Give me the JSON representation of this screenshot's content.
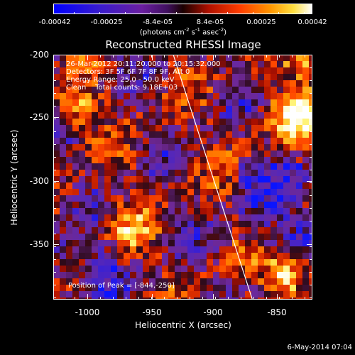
{
  "colorbar": {
    "tick_labels": [
      "-0.00042",
      "-0.00025",
      "-8.4e-05",
      "8.4e-05",
      "0.00025",
      "0.00042"
    ],
    "unit_text": "(photons cm",
    "unit_exp1": "-2",
    "unit_mid": " s",
    "unit_exp2": "-1",
    "unit_mid2": " asec",
    "unit_exp3": "-2",
    "unit_end": ")"
  },
  "title": "Reconstructed RHESSI Image",
  "info_lines": {
    "time": "26-Mar-2012 20:11:20.000 to 20:15:32.000",
    "detectors": "Detectors: 3F 5F 6F 7F 8F 9F, Att 0",
    "energy": "Energy Range: 25.0 - 50.0 keV",
    "clean": "Clean    Total counts: 9.18E+03"
  },
  "peak_text": "Position of Peak = [-844,-250]",
  "y_axis": {
    "label": "Heliocentric Y (arcsec)",
    "tick_labels": [
      "-200",
      "-250",
      "-300",
      "-350"
    ]
  },
  "x_axis": {
    "label": "Heliocentric X (arcsec)",
    "tick_labels": [
      "-1000",
      "-950",
      "-900",
      "-850"
    ]
  },
  "footer_date": "6-May-2014 07:04",
  "colors": {
    "colormap": [
      "#0a14ff",
      "#5a1eb4",
      "#8c1890",
      "#2a0000",
      "#c81400",
      "#ff8c00",
      "#ffff80",
      "#ffffff"
    ],
    "limb_line": "#ffffff"
  },
  "chart_data": {
    "type": "heatmap",
    "title": "Reconstructed RHESSI Image",
    "xlabel": "Heliocentric X (arcsec)",
    "ylabel": "Heliocentric Y (arcsec)",
    "xlim": [
      -1023,
      -833
    ],
    "ylim": [
      -393,
      -200
    ],
    "color_range": [
      -0.00042,
      0.00042
    ],
    "peak_position": [
      -844,
      -250
    ],
    "limb_line": {
      "x_top": -935,
      "x_bottom": -877
    }
  }
}
